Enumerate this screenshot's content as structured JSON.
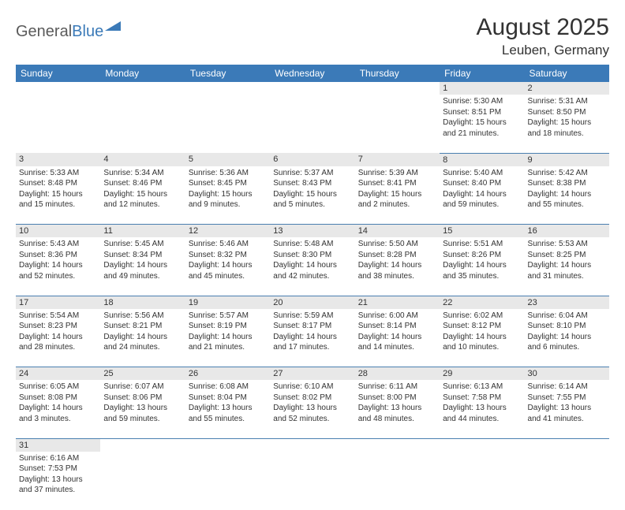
{
  "logo": {
    "general": "General",
    "blue": "Blue"
  },
  "title": "August 2025",
  "location": "Leuben, Germany",
  "dayHeaders": [
    "Sunday",
    "Monday",
    "Tuesday",
    "Wednesday",
    "Thursday",
    "Friday",
    "Saturday"
  ],
  "colors": {
    "headerBg": "#3b7ab8",
    "headerText": "#ffffff",
    "daynumBg": "#e8e8e8",
    "rowDivider": "#4a7fb0",
    "text": "#333333",
    "logoGray": "#5a5a5a",
    "logoBlue": "#3b7ab8",
    "background": "#ffffff"
  },
  "layout": {
    "pageWidth": 792,
    "pageHeight": 612,
    "columns": 7,
    "rows": 6,
    "titleFontSize": 30,
    "locationFontSize": 17,
    "headerFontSize": 12,
    "cellFontSize": 10
  },
  "weeks": [
    [
      null,
      null,
      null,
      null,
      null,
      {
        "n": "1",
        "sr": "Sunrise: 5:30 AM",
        "ss": "Sunset: 8:51 PM",
        "d1": "Daylight: 15 hours",
        "d2": "and 21 minutes."
      },
      {
        "n": "2",
        "sr": "Sunrise: 5:31 AM",
        "ss": "Sunset: 8:50 PM",
        "d1": "Daylight: 15 hours",
        "d2": "and 18 minutes."
      }
    ],
    [
      {
        "n": "3",
        "sr": "Sunrise: 5:33 AM",
        "ss": "Sunset: 8:48 PM",
        "d1": "Daylight: 15 hours",
        "d2": "and 15 minutes."
      },
      {
        "n": "4",
        "sr": "Sunrise: 5:34 AM",
        "ss": "Sunset: 8:46 PM",
        "d1": "Daylight: 15 hours",
        "d2": "and 12 minutes."
      },
      {
        "n": "5",
        "sr": "Sunrise: 5:36 AM",
        "ss": "Sunset: 8:45 PM",
        "d1": "Daylight: 15 hours",
        "d2": "and 9 minutes."
      },
      {
        "n": "6",
        "sr": "Sunrise: 5:37 AM",
        "ss": "Sunset: 8:43 PM",
        "d1": "Daylight: 15 hours",
        "d2": "and 5 minutes."
      },
      {
        "n": "7",
        "sr": "Sunrise: 5:39 AM",
        "ss": "Sunset: 8:41 PM",
        "d1": "Daylight: 15 hours",
        "d2": "and 2 minutes."
      },
      {
        "n": "8",
        "sr": "Sunrise: 5:40 AM",
        "ss": "Sunset: 8:40 PM",
        "d1": "Daylight: 14 hours",
        "d2": "and 59 minutes."
      },
      {
        "n": "9",
        "sr": "Sunrise: 5:42 AM",
        "ss": "Sunset: 8:38 PM",
        "d1": "Daylight: 14 hours",
        "d2": "and 55 minutes."
      }
    ],
    [
      {
        "n": "10",
        "sr": "Sunrise: 5:43 AM",
        "ss": "Sunset: 8:36 PM",
        "d1": "Daylight: 14 hours",
        "d2": "and 52 minutes."
      },
      {
        "n": "11",
        "sr": "Sunrise: 5:45 AM",
        "ss": "Sunset: 8:34 PM",
        "d1": "Daylight: 14 hours",
        "d2": "and 49 minutes."
      },
      {
        "n": "12",
        "sr": "Sunrise: 5:46 AM",
        "ss": "Sunset: 8:32 PM",
        "d1": "Daylight: 14 hours",
        "d2": "and 45 minutes."
      },
      {
        "n": "13",
        "sr": "Sunrise: 5:48 AM",
        "ss": "Sunset: 8:30 PM",
        "d1": "Daylight: 14 hours",
        "d2": "and 42 minutes."
      },
      {
        "n": "14",
        "sr": "Sunrise: 5:50 AM",
        "ss": "Sunset: 8:28 PM",
        "d1": "Daylight: 14 hours",
        "d2": "and 38 minutes."
      },
      {
        "n": "15",
        "sr": "Sunrise: 5:51 AM",
        "ss": "Sunset: 8:26 PM",
        "d1": "Daylight: 14 hours",
        "d2": "and 35 minutes."
      },
      {
        "n": "16",
        "sr": "Sunrise: 5:53 AM",
        "ss": "Sunset: 8:25 PM",
        "d1": "Daylight: 14 hours",
        "d2": "and 31 minutes."
      }
    ],
    [
      {
        "n": "17",
        "sr": "Sunrise: 5:54 AM",
        "ss": "Sunset: 8:23 PM",
        "d1": "Daylight: 14 hours",
        "d2": "and 28 minutes."
      },
      {
        "n": "18",
        "sr": "Sunrise: 5:56 AM",
        "ss": "Sunset: 8:21 PM",
        "d1": "Daylight: 14 hours",
        "d2": "and 24 minutes."
      },
      {
        "n": "19",
        "sr": "Sunrise: 5:57 AM",
        "ss": "Sunset: 8:19 PM",
        "d1": "Daylight: 14 hours",
        "d2": "and 21 minutes."
      },
      {
        "n": "20",
        "sr": "Sunrise: 5:59 AM",
        "ss": "Sunset: 8:17 PM",
        "d1": "Daylight: 14 hours",
        "d2": "and 17 minutes."
      },
      {
        "n": "21",
        "sr": "Sunrise: 6:00 AM",
        "ss": "Sunset: 8:14 PM",
        "d1": "Daylight: 14 hours",
        "d2": "and 14 minutes."
      },
      {
        "n": "22",
        "sr": "Sunrise: 6:02 AM",
        "ss": "Sunset: 8:12 PM",
        "d1": "Daylight: 14 hours",
        "d2": "and 10 minutes."
      },
      {
        "n": "23",
        "sr": "Sunrise: 6:04 AM",
        "ss": "Sunset: 8:10 PM",
        "d1": "Daylight: 14 hours",
        "d2": "and 6 minutes."
      }
    ],
    [
      {
        "n": "24",
        "sr": "Sunrise: 6:05 AM",
        "ss": "Sunset: 8:08 PM",
        "d1": "Daylight: 14 hours",
        "d2": "and 3 minutes."
      },
      {
        "n": "25",
        "sr": "Sunrise: 6:07 AM",
        "ss": "Sunset: 8:06 PM",
        "d1": "Daylight: 13 hours",
        "d2": "and 59 minutes."
      },
      {
        "n": "26",
        "sr": "Sunrise: 6:08 AM",
        "ss": "Sunset: 8:04 PM",
        "d1": "Daylight: 13 hours",
        "d2": "and 55 minutes."
      },
      {
        "n": "27",
        "sr": "Sunrise: 6:10 AM",
        "ss": "Sunset: 8:02 PM",
        "d1": "Daylight: 13 hours",
        "d2": "and 52 minutes."
      },
      {
        "n": "28",
        "sr": "Sunrise: 6:11 AM",
        "ss": "Sunset: 8:00 PM",
        "d1": "Daylight: 13 hours",
        "d2": "and 48 minutes."
      },
      {
        "n": "29",
        "sr": "Sunrise: 6:13 AM",
        "ss": "Sunset: 7:58 PM",
        "d1": "Daylight: 13 hours",
        "d2": "and 44 minutes."
      },
      {
        "n": "30",
        "sr": "Sunrise: 6:14 AM",
        "ss": "Sunset: 7:55 PM",
        "d1": "Daylight: 13 hours",
        "d2": "and 41 minutes."
      }
    ],
    [
      {
        "n": "31",
        "sr": "Sunrise: 6:16 AM",
        "ss": "Sunset: 7:53 PM",
        "d1": "Daylight: 13 hours",
        "d2": "and 37 minutes."
      },
      null,
      null,
      null,
      null,
      null,
      null
    ]
  ]
}
